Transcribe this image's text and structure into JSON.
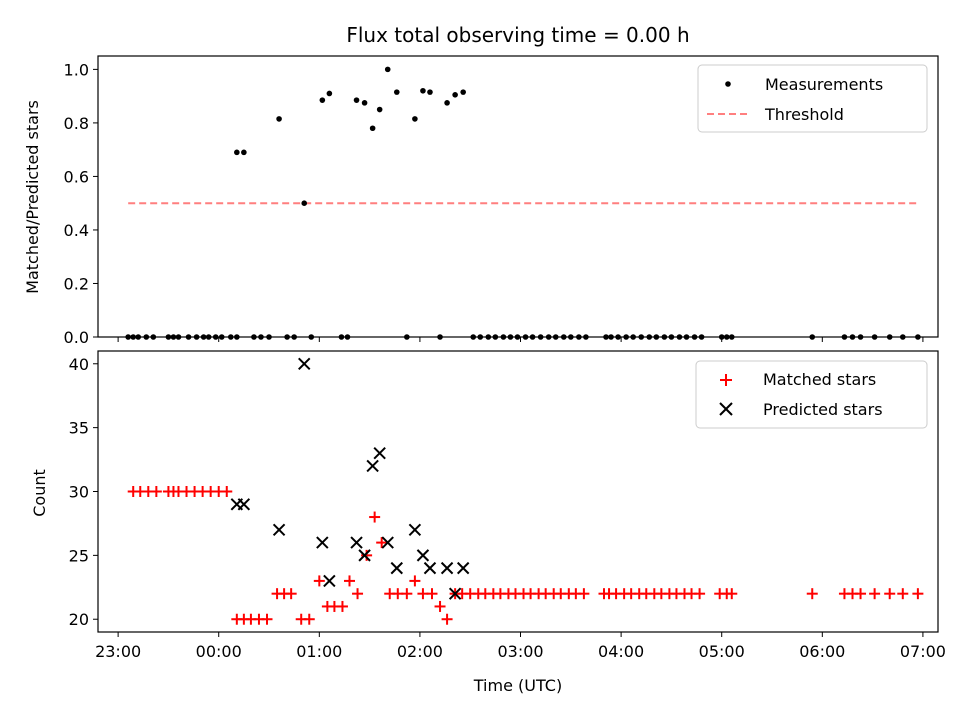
{
  "chart_data": [
    {
      "type": "scatter",
      "title": "Flux total observing time = 0.00 h",
      "ylabel": "Matched/Predicted stars",
      "xlabel": "",
      "xlim": [
        -0.2,
        8.15
      ],
      "ylim": [
        0,
        1.05
      ],
      "yticks": [
        0.0,
        0.2,
        0.4,
        0.6,
        0.8,
        1.0
      ],
      "ytick_labels": [
        "0.0",
        "0.2",
        "0.4",
        "0.6",
        "0.8",
        "1.0"
      ],
      "xticks": [
        0,
        1,
        2,
        3,
        4,
        5,
        6,
        7,
        8
      ],
      "xtick_labels": [],
      "legend_position": "top-right",
      "threshold": {
        "name": "Threshold",
        "value": 0.5,
        "x_start": 0.1,
        "x_end": 7.95,
        "color": "#ff7f7f"
      },
      "series": [
        {
          "name": "Measurements",
          "color": "#000000",
          "marker": "dot",
          "points": [
            [
              0.1,
              0
            ],
            [
              0.15,
              0
            ],
            [
              0.2,
              0
            ],
            [
              0.28,
              0
            ],
            [
              0.35,
              0
            ],
            [
              0.5,
              0
            ],
            [
              0.55,
              0
            ],
            [
              0.6,
              0
            ],
            [
              0.7,
              0
            ],
            [
              0.78,
              0
            ],
            [
              0.85,
              0
            ],
            [
              0.9,
              0
            ],
            [
              0.97,
              0
            ],
            [
              1.03,
              0
            ],
            [
              1.12,
              0
            ],
            [
              1.18,
              0
            ],
            [
              1.18,
              0.69
            ],
            [
              1.25,
              0.69
            ],
            [
              1.35,
              0
            ],
            [
              1.42,
              0
            ],
            [
              1.5,
              0
            ],
            [
              1.6,
              0.815
            ],
            [
              1.68,
              0
            ],
            [
              1.75,
              0
            ],
            [
              1.85,
              0.5
            ],
            [
              1.92,
              0
            ],
            [
              2.03,
              0.885
            ],
            [
              2.1,
              0.91
            ],
            [
              2.22,
              0
            ],
            [
              2.28,
              0
            ],
            [
              2.37,
              0.885
            ],
            [
              2.45,
              0.875
            ],
            [
              2.53,
              0.78
            ],
            [
              2.6,
              0.85
            ],
            [
              2.68,
              1.0
            ],
            [
              2.77,
              0.915
            ],
            [
              2.87,
              0
            ],
            [
              2.95,
              0.815
            ],
            [
              3.03,
              0.92
            ],
            [
              3.1,
              0.915
            ],
            [
              3.2,
              0
            ],
            [
              3.27,
              0.875
            ],
            [
              3.35,
              0.905
            ],
            [
              3.43,
              0.915
            ],
            [
              3.53,
              0
            ],
            [
              3.6,
              0
            ],
            [
              3.68,
              0
            ],
            [
              3.75,
              0
            ],
            [
              3.83,
              0
            ],
            [
              3.9,
              0
            ],
            [
              3.97,
              0
            ],
            [
              4.05,
              0
            ],
            [
              4.12,
              0
            ],
            [
              4.2,
              0
            ],
            [
              4.28,
              0
            ],
            [
              4.35,
              0
            ],
            [
              4.43,
              0
            ],
            [
              4.5,
              0
            ],
            [
              4.58,
              0
            ],
            [
              4.65,
              0
            ],
            [
              4.85,
              0
            ],
            [
              4.9,
              0
            ],
            [
              4.97,
              0
            ],
            [
              5.05,
              0
            ],
            [
              5.12,
              0
            ],
            [
              5.2,
              0
            ],
            [
              5.28,
              0
            ],
            [
              5.35,
              0
            ],
            [
              5.43,
              0
            ],
            [
              5.5,
              0
            ],
            [
              5.58,
              0
            ],
            [
              5.65,
              0
            ],
            [
              5.73,
              0
            ],
            [
              5.8,
              0
            ],
            [
              6.0,
              0
            ],
            [
              6.05,
              0
            ],
            [
              6.1,
              0
            ],
            [
              6.9,
              0
            ],
            [
              7.22,
              0
            ],
            [
              7.3,
              0
            ],
            [
              7.38,
              0
            ],
            [
              7.52,
              0
            ],
            [
              7.67,
              0
            ],
            [
              7.8,
              0
            ],
            [
              7.95,
              0
            ]
          ]
        }
      ]
    },
    {
      "type": "scatter",
      "title": "",
      "ylabel": "Count",
      "xlabel": "Time (UTC)",
      "xlim": [
        -0.2,
        8.15
      ],
      "ylim": [
        19,
        41
      ],
      "yticks": [
        20,
        25,
        30,
        35,
        40
      ],
      "ytick_labels": [
        "20",
        "25",
        "30",
        "35",
        "40"
      ],
      "xticks": [
        0,
        1,
        2,
        3,
        4,
        5,
        6,
        7,
        8
      ],
      "xtick_labels": [
        "23:00",
        "00:00",
        "01:00",
        "02:00",
        "03:00",
        "04:00",
        "05:00",
        "06:00",
        "07:00"
      ],
      "legend_position": "top-right",
      "series": [
        {
          "name": "Matched stars",
          "color": "#ff0000",
          "marker": "plus",
          "points": [
            [
              0.15,
              30
            ],
            [
              0.22,
              30
            ],
            [
              0.3,
              30
            ],
            [
              0.38,
              30
            ],
            [
              0.5,
              30
            ],
            [
              0.55,
              30
            ],
            [
              0.6,
              30
            ],
            [
              0.68,
              30
            ],
            [
              0.76,
              30
            ],
            [
              0.84,
              30
            ],
            [
              0.92,
              30
            ],
            [
              1.0,
              30
            ],
            [
              1.08,
              30
            ],
            [
              1.18,
              20
            ],
            [
              1.25,
              20
            ],
            [
              1.32,
              20
            ],
            [
              1.4,
              20
            ],
            [
              1.48,
              20
            ],
            [
              1.58,
              22
            ],
            [
              1.65,
              22
            ],
            [
              1.72,
              22
            ],
            [
              1.82,
              20
            ],
            [
              1.9,
              20
            ],
            [
              2.0,
              23
            ],
            [
              2.08,
              21
            ],
            [
              2.15,
              21
            ],
            [
              2.23,
              21
            ],
            [
              2.3,
              23
            ],
            [
              2.38,
              22
            ],
            [
              2.47,
              25
            ],
            [
              2.55,
              28
            ],
            [
              2.62,
              26
            ],
            [
              2.7,
              22
            ],
            [
              2.78,
              22
            ],
            [
              2.87,
              22
            ],
            [
              2.95,
              23
            ],
            [
              3.03,
              22
            ],
            [
              3.12,
              22
            ],
            [
              3.2,
              21
            ],
            [
              3.27,
              20
            ],
            [
              3.35,
              22
            ],
            [
              3.42,
              22
            ],
            [
              3.5,
              22
            ],
            [
              3.58,
              22
            ],
            [
              3.65,
              22
            ],
            [
              3.73,
              22
            ],
            [
              3.8,
              22
            ],
            [
              3.88,
              22
            ],
            [
              3.95,
              22
            ],
            [
              4.03,
              22
            ],
            [
              4.1,
              22
            ],
            [
              4.18,
              22
            ],
            [
              4.25,
              22
            ],
            [
              4.33,
              22
            ],
            [
              4.4,
              22
            ],
            [
              4.48,
              22
            ],
            [
              4.55,
              22
            ],
            [
              4.63,
              22
            ],
            [
              4.83,
              22
            ],
            [
              4.88,
              22
            ],
            [
              4.95,
              22
            ],
            [
              5.03,
              22
            ],
            [
              5.1,
              22
            ],
            [
              5.18,
              22
            ],
            [
              5.25,
              22
            ],
            [
              5.33,
              22
            ],
            [
              5.4,
              22
            ],
            [
              5.48,
              22
            ],
            [
              5.55,
              22
            ],
            [
              5.63,
              22
            ],
            [
              5.7,
              22
            ],
            [
              5.78,
              22
            ],
            [
              5.98,
              22
            ],
            [
              6.05,
              22
            ],
            [
              6.1,
              22
            ],
            [
              6.9,
              22
            ],
            [
              7.22,
              22
            ],
            [
              7.3,
              22
            ],
            [
              7.38,
              22
            ],
            [
              7.52,
              22
            ],
            [
              7.67,
              22
            ],
            [
              7.8,
              22
            ],
            [
              7.95,
              22
            ]
          ]
        },
        {
          "name": "Predicted stars",
          "color": "#000000",
          "marker": "x",
          "points": [
            [
              1.18,
              29
            ],
            [
              1.25,
              29
            ],
            [
              1.6,
              27
            ],
            [
              1.85,
              40
            ],
            [
              2.03,
              26
            ],
            [
              2.1,
              23
            ],
            [
              2.37,
              26
            ],
            [
              2.45,
              25
            ],
            [
              2.53,
              32
            ],
            [
              2.6,
              33
            ],
            [
              2.68,
              26
            ],
            [
              2.77,
              24
            ],
            [
              2.95,
              27
            ],
            [
              3.03,
              25
            ],
            [
              3.1,
              24
            ],
            [
              3.27,
              24
            ],
            [
              3.35,
              22
            ],
            [
              3.43,
              24
            ]
          ]
        }
      ]
    }
  ]
}
